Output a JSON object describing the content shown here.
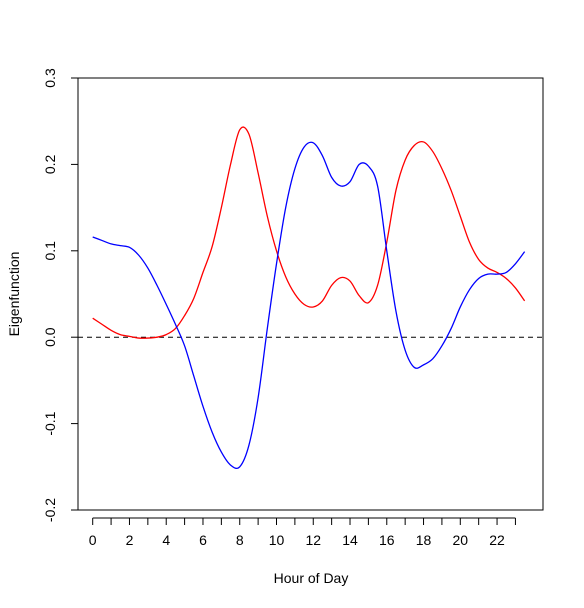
{
  "chart_data": {
    "type": "line",
    "title": "",
    "xlabel": "Hour of Day",
    "ylabel": "Eigenfunction",
    "xlim": [
      -0.8,
      24.5
    ],
    "ylim": [
      -0.2,
      0.3
    ],
    "x_ticks_minor": [
      0,
      1,
      2,
      3,
      4,
      5,
      6,
      7,
      8,
      9,
      10,
      11,
      12,
      13,
      14,
      15,
      16,
      17,
      18,
      19,
      20,
      21,
      22,
      23
    ],
    "x_tick_labels": [
      "0",
      "2",
      "4",
      "6",
      "8",
      "10",
      "12",
      "14",
      "16",
      "18",
      "20",
      "22"
    ],
    "x_tick_label_values": [
      0,
      2,
      4,
      6,
      8,
      10,
      12,
      14,
      16,
      18,
      20,
      22
    ],
    "y_ticks": [
      -0.2,
      -0.1,
      0.0,
      0.1,
      0.2,
      0.3
    ],
    "y_tick_labels": [
      "-0.2",
      "-0.1",
      "0.0",
      "0.1",
      "0.2",
      "0.3"
    ],
    "reference_line": {
      "y": 0.0,
      "style": "dashed",
      "color": "#000000"
    },
    "grid": false,
    "legend": "none",
    "series": [
      {
        "color": "#ff0000",
        "x": [
          0,
          0.5,
          1,
          1.5,
          2,
          2.5,
          3,
          3.5,
          4,
          4.5,
          5,
          5.5,
          6,
          6.5,
          7,
          7.5,
          8,
          8.5,
          9,
          9.5,
          10,
          10.5,
          11,
          11.5,
          12,
          12.5,
          13,
          13.5,
          14,
          14.5,
          15,
          15.5,
          16,
          16.5,
          17,
          17.5,
          18,
          18.5,
          19,
          19.5,
          20,
          20.5,
          21,
          21.5,
          22,
          22.5,
          23,
          23.5
        ],
        "values": [
          0.022,
          0.015,
          0.008,
          0.003,
          0.001,
          -0.001,
          -0.001,
          0.0,
          0.003,
          0.01,
          0.025,
          0.045,
          0.075,
          0.105,
          0.15,
          0.2,
          0.24,
          0.235,
          0.19,
          0.14,
          0.1,
          0.07,
          0.05,
          0.038,
          0.035,
          0.042,
          0.06,
          0.069,
          0.065,
          0.048,
          0.04,
          0.06,
          0.11,
          0.17,
          0.205,
          0.222,
          0.226,
          0.215,
          0.195,
          0.17,
          0.14,
          0.11,
          0.09,
          0.08,
          0.075,
          0.068,
          0.057,
          0.042
        ]
      },
      {
        "color": "#0000ff",
        "x": [
          0,
          0.5,
          1,
          1.5,
          2,
          2.5,
          3,
          3.5,
          4,
          4.5,
          5,
          5.5,
          6,
          6.5,
          7,
          7.5,
          8,
          8.5,
          9,
          9.5,
          10,
          10.5,
          11,
          11.5,
          12,
          12.5,
          13,
          13.5,
          14,
          14.5,
          15,
          15.5,
          16,
          16.5,
          17,
          17.5,
          18,
          18.5,
          19,
          19.5,
          20,
          20.5,
          21,
          21.5,
          22,
          22.5,
          23,
          23.5
        ],
        "values": [
          0.116,
          0.112,
          0.108,
          0.106,
          0.104,
          0.095,
          0.08,
          0.06,
          0.038,
          0.015,
          -0.01,
          -0.045,
          -0.08,
          -0.11,
          -0.133,
          -0.148,
          -0.15,
          -0.125,
          -0.07,
          0.01,
          0.085,
          0.15,
          0.195,
          0.22,
          0.225,
          0.21,
          0.185,
          0.175,
          0.18,
          0.2,
          0.198,
          0.175,
          0.1,
          0.03,
          -0.015,
          -0.035,
          -0.032,
          -0.025,
          -0.01,
          0.01,
          0.035,
          0.055,
          0.068,
          0.073,
          0.073,
          0.075,
          0.085,
          0.099
        ]
      }
    ]
  }
}
